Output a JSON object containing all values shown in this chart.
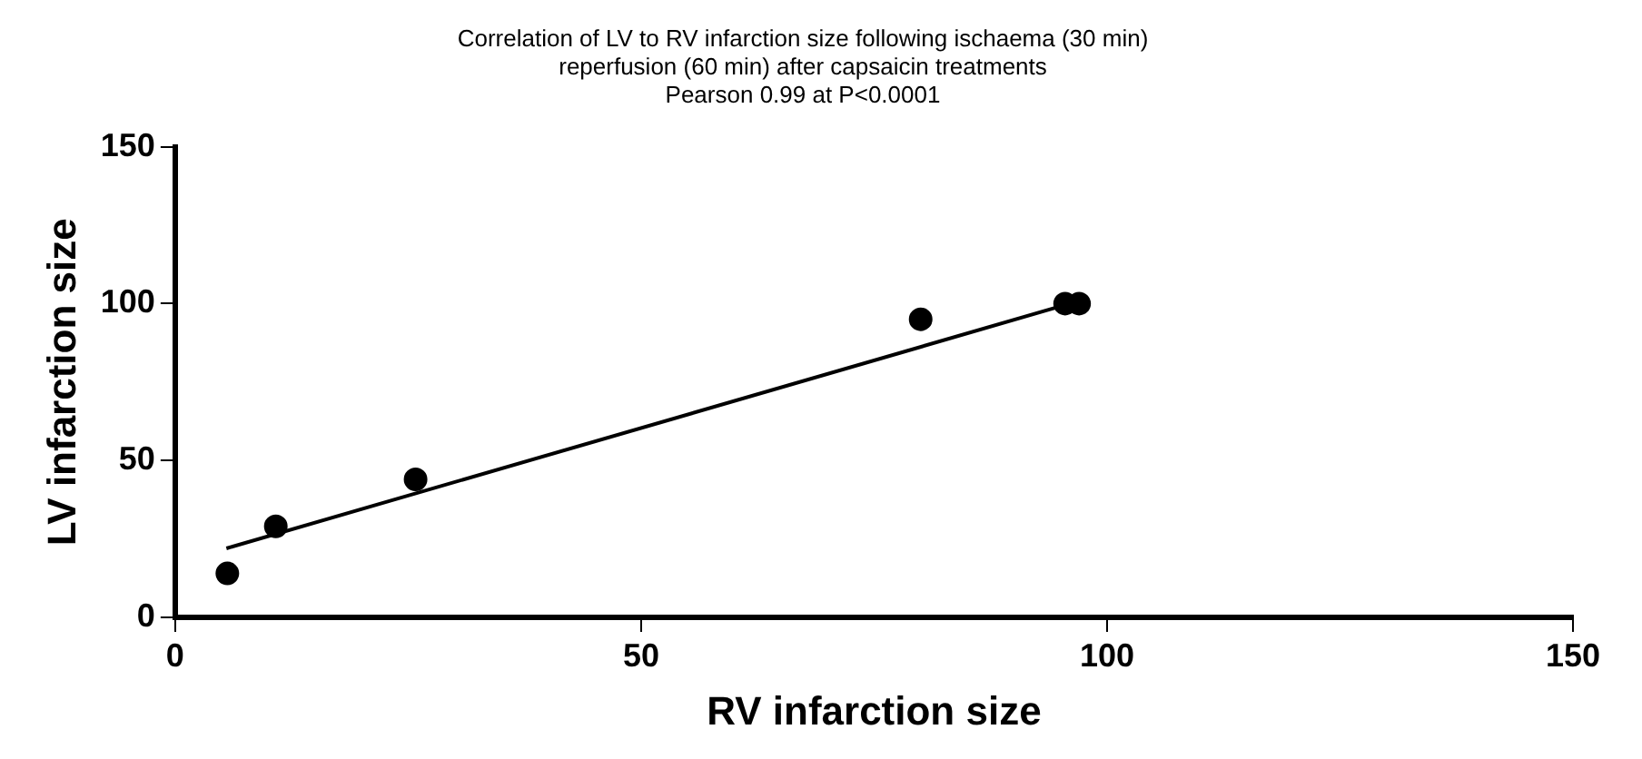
{
  "chart_data": {
    "type": "scatter",
    "title": "Correlation of LV to RV infarction size following ischaema (30 min)\nreperfusion (60 min) after capsaicin treatments\nPearson 0.99 at P<0.0001",
    "xlabel": "RV infarction size",
    "ylabel": "LV infarction size",
    "xlim": [
      0,
      150
    ],
    "xticks": [
      0,
      50,
      100,
      150
    ],
    "ylim": [
      0,
      150
    ],
    "yticks": [
      0,
      50,
      100,
      150
    ],
    "grid": false,
    "legend": false,
    "marker": "circle",
    "series": [
      {
        "type": "scatter",
        "color": "#000000",
        "x": [
          5.6,
          10.8,
          25.8,
          80,
          95.5,
          97
        ],
        "values": [
          14,
          29,
          44,
          95,
          100,
          100
        ]
      },
      {
        "type": "line",
        "color": "#000000",
        "marker": "none",
        "line_style": "solid",
        "x": [
          5.5,
          96
        ],
        "values": [
          22,
          100
        ]
      }
    ]
  }
}
